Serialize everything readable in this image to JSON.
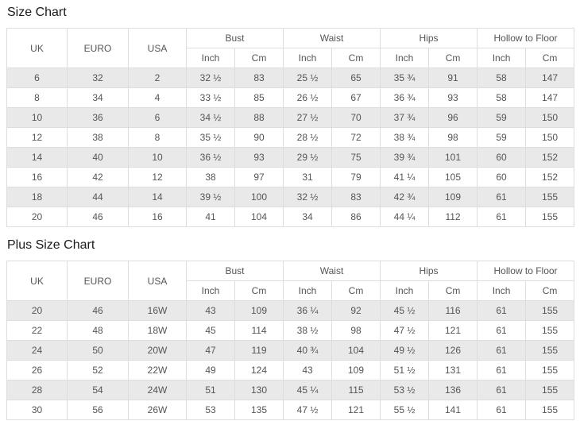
{
  "columns": {
    "simple": [
      "UK",
      "EURO",
      "USA"
    ],
    "groups": [
      "Bust",
      "Waist",
      "Hips",
      "Hollow to Floor"
    ],
    "sub": [
      "Inch",
      "Cm"
    ]
  },
  "sections": [
    {
      "title": "Size Chart",
      "rows": [
        [
          "6",
          "32",
          "2",
          "32 ½",
          "83",
          "25 ½",
          "65",
          "35 ¾",
          "91",
          "58",
          "147"
        ],
        [
          "8",
          "34",
          "4",
          "33 ½",
          "85",
          "26 ½",
          "67",
          "36 ¾",
          "93",
          "58",
          "147"
        ],
        [
          "10",
          "36",
          "6",
          "34 ½",
          "88",
          "27 ½",
          "70",
          "37 ¾",
          "96",
          "59",
          "150"
        ],
        [
          "12",
          "38",
          "8",
          "35 ½",
          "90",
          "28 ½",
          "72",
          "38 ¾",
          "98",
          "59",
          "150"
        ],
        [
          "14",
          "40",
          "10",
          "36 ½",
          "93",
          "29 ½",
          "75",
          "39 ¾",
          "101",
          "60",
          "152"
        ],
        [
          "16",
          "42",
          "12",
          "38",
          "97",
          "31",
          "79",
          "41 ¼",
          "105",
          "60",
          "152"
        ],
        [
          "18",
          "44",
          "14",
          "39 ½",
          "100",
          "32 ½",
          "83",
          "42 ¾",
          "109",
          "61",
          "155"
        ],
        [
          "20",
          "46",
          "16",
          "41",
          "104",
          "34",
          "86",
          "44 ¼",
          "112",
          "61",
          "155"
        ]
      ]
    },
    {
      "title": "Plus Size Chart",
      "rows": [
        [
          "20",
          "46",
          "16W",
          "43",
          "109",
          "36 ¼",
          "92",
          "45 ½",
          "116",
          "61",
          "155"
        ],
        [
          "22",
          "48",
          "18W",
          "45",
          "114",
          "38 ½",
          "98",
          "47 ½",
          "121",
          "61",
          "155"
        ],
        [
          "24",
          "50",
          "20W",
          "47",
          "119",
          "40 ¾",
          "104",
          "49 ½",
          "126",
          "61",
          "155"
        ],
        [
          "26",
          "52",
          "22W",
          "49",
          "124",
          "43",
          "109",
          "51 ½",
          "131",
          "61",
          "155"
        ],
        [
          "28",
          "54",
          "24W",
          "51",
          "130",
          "45 ¼",
          "115",
          "53 ½",
          "136",
          "61",
          "155"
        ],
        [
          "30",
          "56",
          "26W",
          "53",
          "135",
          "47 ½",
          "121",
          "55 ½",
          "141",
          "61",
          "155"
        ]
      ]
    }
  ],
  "colors": {
    "row_alt_background": "#e9e9e9",
    "table_border": "#dddddd",
    "cell_text": "#555555",
    "title_text": "#1a1a1a"
  }
}
